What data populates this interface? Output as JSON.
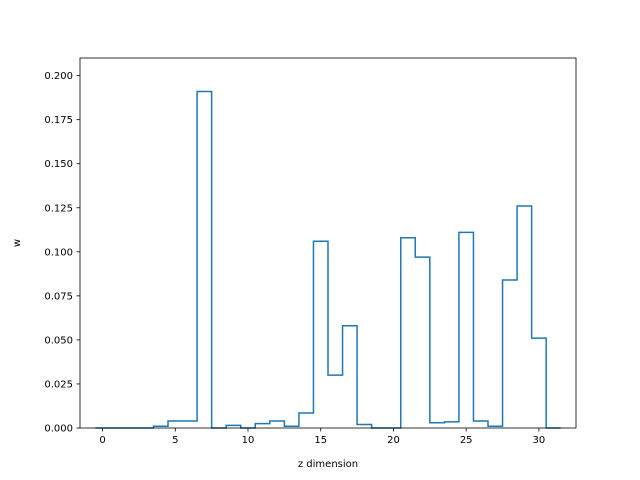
{
  "chart_data": {
    "type": "step",
    "xlabel": "z dimension",
    "ylabel": "w",
    "xlim": [
      -1.55,
      32.55
    ],
    "ylim": [
      0,
      0.21
    ],
    "xticks": [
      0,
      5,
      10,
      15,
      20,
      25,
      30
    ],
    "yticks": [
      0.0,
      0.025,
      0.05,
      0.075,
      0.1,
      0.125,
      0.15,
      0.175,
      0.2
    ],
    "ytick_labels": [
      "0.000",
      "0.025",
      "0.050",
      "0.075",
      "0.100",
      "0.125",
      "0.150",
      "0.175",
      "0.200"
    ],
    "line_color": "#1f77b4",
    "series": [
      {
        "x": [
          0,
          1,
          2,
          3,
          4,
          5,
          6,
          7,
          8,
          9,
          10,
          11,
          12,
          13,
          14,
          15,
          16,
          17,
          18,
          19,
          20,
          21,
          22,
          23,
          24,
          25,
          26,
          27,
          28,
          29,
          30,
          31
        ],
        "values": [
          0.0,
          0.0,
          0.0,
          0.0,
          0.001,
          0.004,
          0.004,
          0.191,
          0.0,
          0.0015,
          0.0,
          0.0025,
          0.004,
          0.001,
          0.0085,
          0.106,
          0.03,
          0.058,
          0.002,
          0.0,
          0.0,
          0.108,
          0.097,
          0.003,
          0.0035,
          0.111,
          0.004,
          0.001,
          0.084,
          0.126,
          0.051,
          0.0
        ]
      }
    ]
  }
}
